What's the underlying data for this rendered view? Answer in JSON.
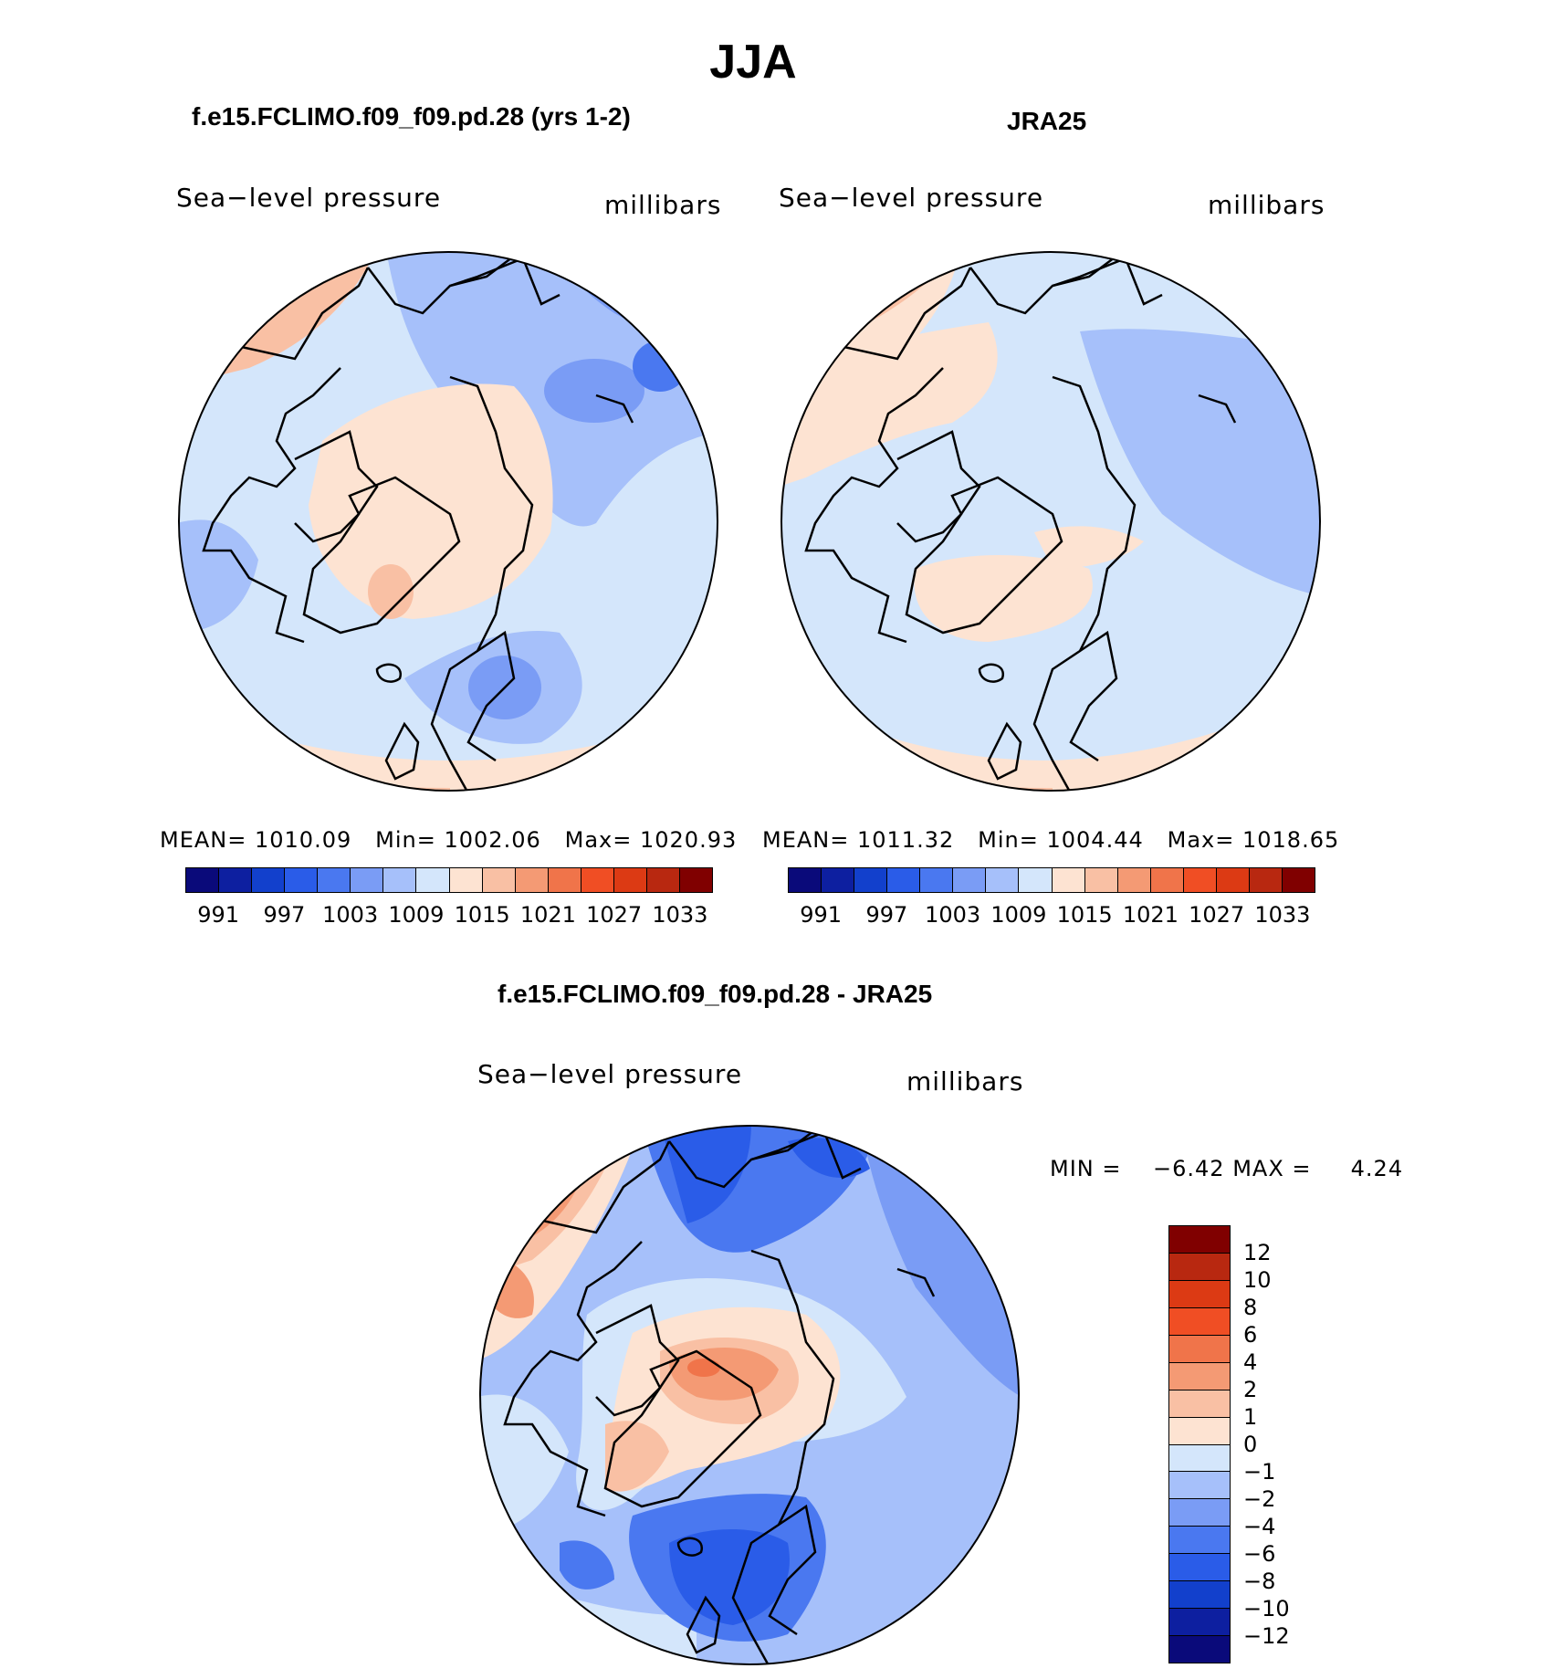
{
  "title": "JJA",
  "panels": [
    {
      "title": "f.e15.FCLIMO.f09_f09.pd.28 (yrs 1-2)",
      "variable": "Sea−level pressure",
      "units": "millibars",
      "stats": {
        "mean_label": "MEAN=",
        "mean": "1010.09",
        "min_label": "Min=",
        "min": "1002.06",
        "max_label": "Max=",
        "max": "1020.93"
      }
    },
    {
      "title": "JRA25",
      "variable": "Sea−level pressure",
      "units": "millibars",
      "stats": {
        "mean_label": "MEAN=",
        "mean": "1011.32",
        "min_label": "Min=",
        "min": "1004.44",
        "max_label": "Max=",
        "max": "1018.65"
      }
    }
  ],
  "abs_colorbar": {
    "colors": [
      "#0a0a7a",
      "#0d1fa0",
      "#1240cc",
      "#2a5ce8",
      "#4a78f0",
      "#7a9cf5",
      "#a6c0fa",
      "#d4e6fb",
      "#fde3d2",
      "#f9c0a4",
      "#f49a74",
      "#f0744a",
      "#f04e24",
      "#dc3a14",
      "#b82810",
      "#800000"
    ],
    "ticks": [
      "991",
      "997",
      "1003",
      "1009",
      "1015",
      "1021",
      "1027",
      "1033"
    ]
  },
  "diff_panel": {
    "title": "f.e15.FCLIMO.f09_f09.pd.28 - JRA25",
    "variable": "Sea−level pressure",
    "units": "millibars",
    "min_label": "MIN =",
    "min": "−6.42",
    "max_label": "MAX =",
    "max": "4.24"
  },
  "diff_colorbar": {
    "colors": [
      "#800000",
      "#b82810",
      "#dc3a14",
      "#f04e24",
      "#f0744a",
      "#f49a74",
      "#f9c0a4",
      "#fde3d2",
      "#d4e6fb",
      "#a6c0fa",
      "#7a9cf5",
      "#4a78f0",
      "#2a5ce8",
      "#1240cc",
      "#0d1fa0",
      "#0a0a7a"
    ],
    "ticks": [
      "12",
      "10",
      "8",
      "6",
      "4",
      "2",
      "1",
      "0",
      "−1",
      "−2",
      "−4",
      "−6",
      "−8",
      "−10",
      "−12"
    ]
  }
}
